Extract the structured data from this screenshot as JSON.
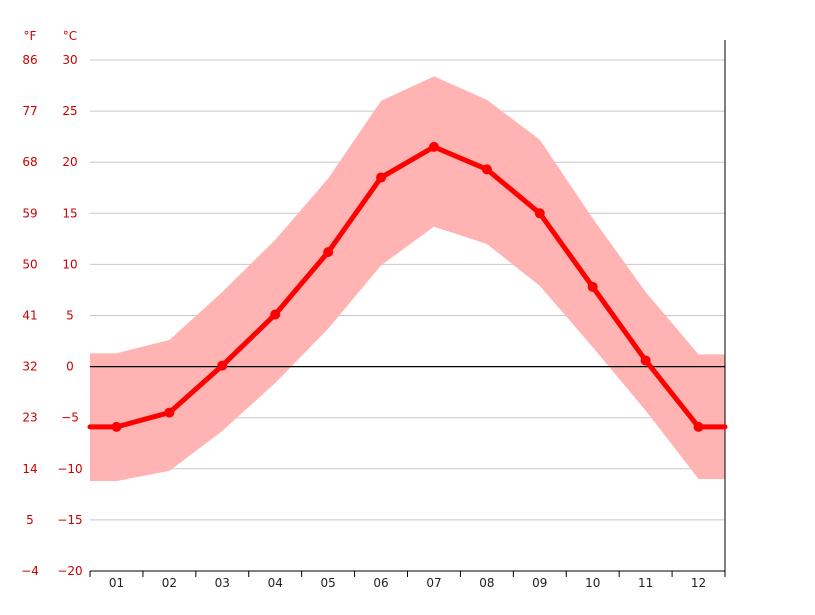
{
  "colors": {
    "line": "#ff0000",
    "band": "#ffb3b3",
    "grid": "#c8c8c8",
    "zero_line": "#000000",
    "axis_label": "#cc0000",
    "x_tick_text": "#222222"
  },
  "chart_data": {
    "type": "line",
    "title": "",
    "unit_labels": {
      "fahrenheit": "°F",
      "celsius": "°C"
    },
    "categories": [
      "01",
      "02",
      "03",
      "04",
      "05",
      "06",
      "07",
      "08",
      "09",
      "10",
      "11",
      "12"
    ],
    "y_ticks_c": [
      "30",
      "25",
      "20",
      "15",
      "10",
      "5",
      "0",
      "-5",
      "-10",
      "-15",
      "-20"
    ],
    "y_ticks_f": [
      "86",
      "77",
      "68",
      "59",
      "50",
      "41",
      "32",
      "23",
      "14",
      "5",
      "-4"
    ],
    "ylim": [
      -20,
      30
    ],
    "grid": true,
    "series": [
      {
        "values": [
          -5.9,
          -4.5,
          0.1,
          5.1,
          11.2,
          18.5,
          21.5,
          19.3,
          15.0,
          7.8,
          0.6,
          -5.9
        ]
      }
    ],
    "band": {
      "upper": [
        1.3,
        2.6,
        7.3,
        12.4,
        18.4,
        26.0,
        28.4,
        26.1,
        22.2,
        14.5,
        7.3,
        1.2
      ],
      "lower": [
        -11.2,
        -10.2,
        -6.3,
        -1.6,
        3.7,
        9.9,
        13.7,
        12.0,
        7.9,
        1.9,
        -4.3,
        -11.0
      ]
    }
  }
}
